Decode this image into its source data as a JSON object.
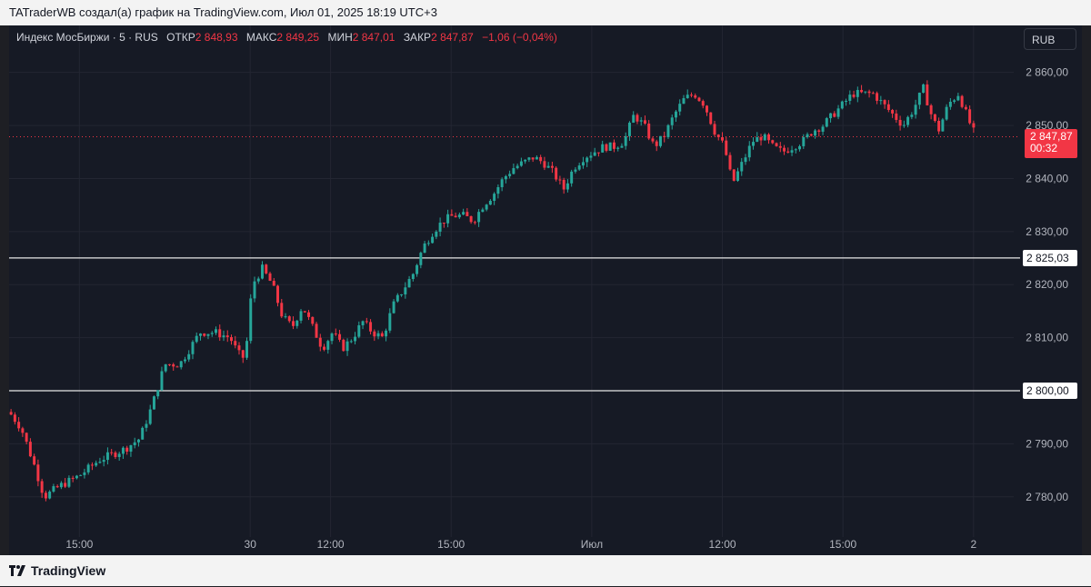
{
  "header": {
    "attribution": "TATraderWB создал(а) график на TradingView.com, Июл 01, 2025 18:19 UTC+3"
  },
  "legend": {
    "symbol": "Индекс МосБиржи · 5 · RUS",
    "open_label": "ОТКР",
    "open_value": "2 848,93",
    "high_label": "МАКС",
    "high_value": "2 849,25",
    "low_label": "МИН",
    "low_value": "2 847,01",
    "close_label": "ЗАКР",
    "close_value": "2 847,87",
    "change": "−1,06 (−0,04%)"
  },
  "currency_button": "RUB",
  "price_tag": {
    "price": "2 847,87",
    "countdown": "00:32"
  },
  "level_tags": [
    "2 825,03",
    "2 800,00"
  ],
  "footer": {
    "brand": "TradingView"
  },
  "colors": {
    "up": "#26a69a",
    "down": "#f23645",
    "background": "#161a25",
    "grid": "#232632"
  },
  "chart_data": {
    "type": "candlestick",
    "ylim": [
      2775,
      2862
    ],
    "y_ticks": [
      "2 860,00",
      "2 850,00",
      "2 840,00",
      "2 830,00",
      "2 820,00",
      "2 810,00",
      "2 790,00",
      "2 780,00"
    ],
    "y_tick_values": [
      2860,
      2850,
      2840,
      2830,
      2820,
      2810,
      2790,
      2780
    ],
    "x_ticks": [
      "15:00",
      "30",
      "12:00",
      "15:00",
      "Июл",
      "12:00",
      "15:00",
      "2"
    ],
    "x_tick_positions": [
      0.07,
      0.24,
      0.32,
      0.44,
      0.58,
      0.71,
      0.83,
      0.96
    ],
    "horizontal_levels": [
      2825.03,
      2800.0
    ],
    "last_price": 2847.87,
    "path": [
      [
        0.0,
        2796
      ],
      [
        0.012,
        2793
      ],
      [
        0.025,
        2786
      ],
      [
        0.035,
        2780
      ],
      [
        0.05,
        2782
      ],
      [
        0.07,
        2784
      ],
      [
        0.09,
        2787
      ],
      [
        0.115,
        2789
      ],
      [
        0.13,
        2791
      ],
      [
        0.142,
        2797
      ],
      [
        0.155,
        2805
      ],
      [
        0.17,
        2805
      ],
      [
        0.19,
        2811
      ],
      [
        0.205,
        2811
      ],
      [
        0.22,
        2810
      ],
      [
        0.228,
        2807
      ],
      [
        0.235,
        2806
      ],
      [
        0.242,
        2820
      ],
      [
        0.252,
        2823
      ],
      [
        0.262,
        2820
      ],
      [
        0.272,
        2814
      ],
      [
        0.282,
        2812
      ],
      [
        0.292,
        2816
      ],
      [
        0.302,
        2812
      ],
      [
        0.312,
        2808
      ],
      [
        0.322,
        2811
      ],
      [
        0.332,
        2808
      ],
      [
        0.342,
        2810
      ],
      [
        0.352,
        2813
      ],
      [
        0.362,
        2811
      ],
      [
        0.372,
        2810
      ],
      [
        0.382,
        2816
      ],
      [
        0.392,
        2819
      ],
      [
        0.402,
        2822
      ],
      [
        0.412,
        2827
      ],
      [
        0.422,
        2830
      ],
      [
        0.432,
        2832
      ],
      [
        0.442,
        2833
      ],
      [
        0.452,
        2833
      ],
      [
        0.462,
        2832
      ],
      [
        0.472,
        2835
      ],
      [
        0.482,
        2837
      ],
      [
        0.492,
        2840
      ],
      [
        0.502,
        2842
      ],
      [
        0.512,
        2843
      ],
      [
        0.522,
        2844
      ],
      [
        0.532,
        2843
      ],
      [
        0.542,
        2841
      ],
      [
        0.552,
        2838
      ],
      [
        0.562,
        2842
      ],
      [
        0.572,
        2844
      ],
      [
        0.582,
        2845
      ],
      [
        0.592,
        2846
      ],
      [
        0.602,
        2846
      ],
      [
        0.612,
        2847
      ],
      [
        0.622,
        2852
      ],
      [
        0.632,
        2850
      ],
      [
        0.642,
        2846
      ],
      [
        0.652,
        2848
      ],
      [
        0.662,
        2852
      ],
      [
        0.672,
        2855
      ],
      [
        0.682,
        2856
      ],
      [
        0.692,
        2854
      ],
      [
        0.702,
        2849
      ],
      [
        0.712,
        2846
      ],
      [
        0.72,
        2839
      ],
      [
        0.73,
        2843
      ],
      [
        0.74,
        2847
      ],
      [
        0.75,
        2848
      ],
      [
        0.76,
        2846
      ],
      [
        0.77,
        2845
      ],
      [
        0.78,
        2846
      ],
      [
        0.79,
        2847
      ],
      [
        0.8,
        2849
      ],
      [
        0.81,
        2850
      ],
      [
        0.82,
        2852
      ],
      [
        0.83,
        2854
      ],
      [
        0.84,
        2856
      ],
      [
        0.85,
        2856
      ],
      [
        0.86,
        2856
      ],
      [
        0.87,
        2854
      ],
      [
        0.88,
        2852
      ],
      [
        0.89,
        2850
      ],
      [
        0.9,
        2853
      ],
      [
        0.91,
        2857
      ],
      [
        0.918,
        2852
      ],
      [
        0.925,
        2849
      ],
      [
        0.935,
        2854
      ],
      [
        0.945,
        2856
      ],
      [
        0.955,
        2851
      ],
      [
        0.962,
        2848
      ]
    ]
  }
}
